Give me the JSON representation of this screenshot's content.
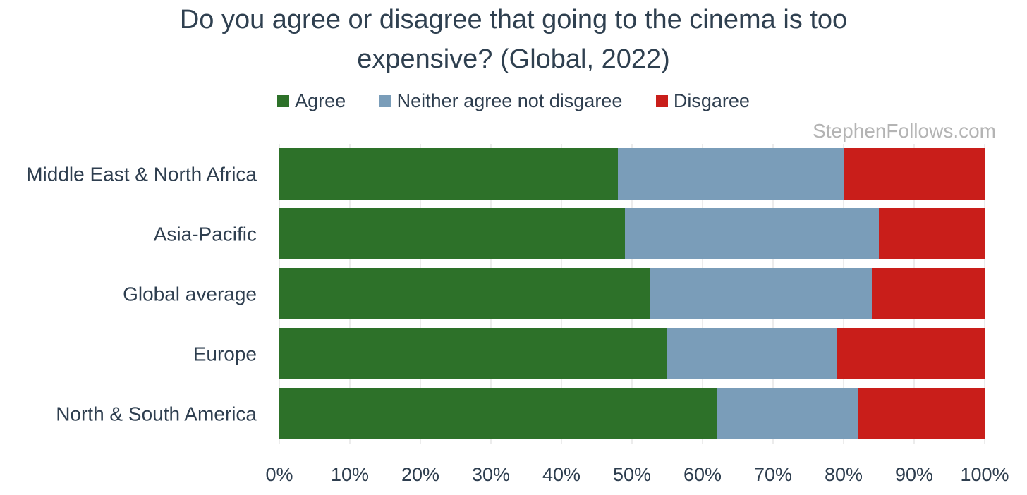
{
  "chart_data": {
    "type": "bar",
    "orientation": "horizontal",
    "stacked": true,
    "title_line1": "Do you agree or disagree that going to the cinema is too",
    "title_line2": "expensive? (Global, 2022)",
    "watermark": "StephenFollows.com",
    "categories": [
      "Middle East & North Africa",
      "Asia-Pacific",
      "Global average",
      "Europe",
      "North & South America"
    ],
    "series": [
      {
        "name": "Agree",
        "color": "#2d7129",
        "values": [
          48,
          49,
          52.5,
          55,
          62
        ]
      },
      {
        "name": "Neither agree not disgaree",
        "color": "#7a9db9",
        "values": [
          32,
          36,
          31.5,
          24,
          20
        ]
      },
      {
        "name": "Disgaree",
        "color": "#c91e1a",
        "values": [
          20,
          15,
          16,
          21,
          18
        ]
      }
    ],
    "xlim": [
      0,
      100
    ],
    "xticks": [
      "0%",
      "10%",
      "20%",
      "30%",
      "40%",
      "50%",
      "60%",
      "70%",
      "80%",
      "90%",
      "100%"
    ],
    "grid": true,
    "legend_position": "top"
  }
}
